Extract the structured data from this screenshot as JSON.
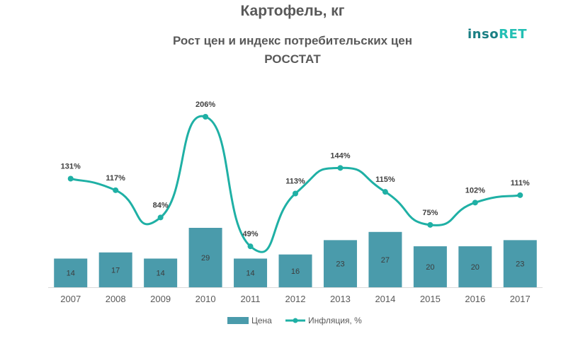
{
  "title": "Картофель, кг",
  "subtitle_line1": "Рост цен и индекс потребительских цен",
  "subtitle_line2": "РОССТАТ",
  "logo": {
    "part1": "inso",
    "part2": "RET"
  },
  "colors": {
    "bar": "#4a9bab",
    "line": "#1fb0a5",
    "axis": "#d9d9d9"
  },
  "chart_data": {
    "type": "bar+line",
    "categories": [
      "2007",
      "2008",
      "2009",
      "2010",
      "2011",
      "2012",
      "2013",
      "2014",
      "2015",
      "2016",
      "2017"
    ],
    "series": [
      {
        "name": "Цена",
        "type": "bar",
        "values": [
          14,
          17,
          14,
          29,
          14,
          16,
          23,
          27,
          20,
          20,
          23
        ]
      },
      {
        "name": "Инфляция, %",
        "type": "line",
        "values": [
          131,
          117,
          84,
          206,
          49,
          113,
          144,
          115,
          75,
          102,
          111
        ],
        "labels": [
          "131%",
          "117%",
          "84%",
          "206%",
          "49%",
          "113%",
          "144%",
          "115%",
          "75%",
          "102%",
          "111%"
        ]
      }
    ],
    "legend_position": "bottom"
  }
}
